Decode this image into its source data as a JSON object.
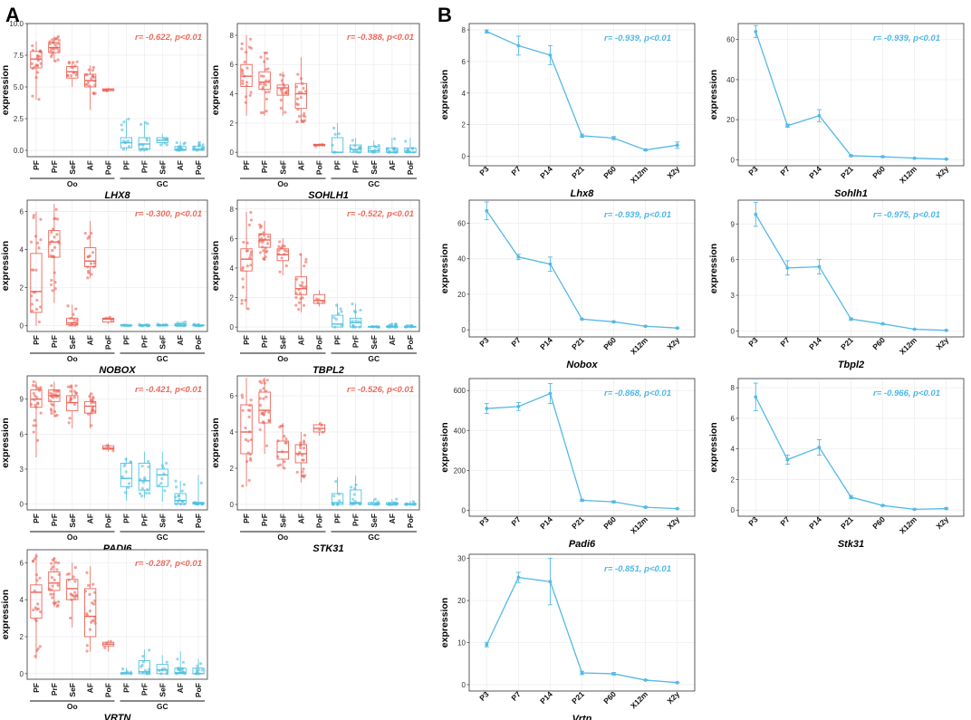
{
  "panels": {
    "a_label": "A",
    "b_label": "B"
  },
  "colors": {
    "oocyte": "#ed6459",
    "granulosa": "#4fc1e0",
    "line": "#55b9e6",
    "grid": "#ececec",
    "frame": "#333333",
    "corr_a": "#ef6a5c",
    "corr_b": "#4eb7e5"
  },
  "common": {
    "ylabel": "expression",
    "box_categories": [
      "PF",
      "PrF",
      "SeF",
      "AF",
      "PoF",
      "PF",
      "PrF",
      "SeF",
      "AF",
      "PoF"
    ],
    "group_oo": "Oo",
    "group_gc": "GC",
    "time_categories": [
      "P3",
      "P7",
      "P14",
      "P21",
      "P60",
      "X12m",
      "X2y"
    ]
  },
  "chart_data": [
    {
      "type": "box",
      "panel": "A",
      "title": "LHX8",
      "correlation": "r= -0.622, p<0.01",
      "ylim": [
        -0.5,
        10
      ],
      "yticks": [
        "0.0",
        "2.5",
        "5.0",
        "7.5",
        "10.0"
      ],
      "ytick_values": [
        0,
        2.5,
        5,
        7.5,
        10
      ],
      "groups": [
        {
          "q1": 6.5,
          "med": 7.2,
          "q3": 7.8,
          "wlo": 4.0,
          "whi": 8.6,
          "n": 22
        },
        {
          "q1": 7.7,
          "med": 8.1,
          "q3": 8.5,
          "wlo": 7.0,
          "whi": 9.0,
          "n": 24
        },
        {
          "q1": 5.7,
          "med": 6.2,
          "q3": 6.6,
          "wlo": 5.0,
          "whi": 7.0,
          "n": 14
        },
        {
          "q1": 5.0,
          "med": 5.5,
          "q3": 6.0,
          "wlo": 3.2,
          "whi": 6.7,
          "n": 18
        },
        {
          "q1": 4.7,
          "med": 4.8,
          "q3": 4.85,
          "wlo": 4.65,
          "whi": 4.95,
          "n": 3
        },
        {
          "q1": 0.2,
          "med": 0.6,
          "q3": 1.0,
          "wlo": 0,
          "whi": 2.5,
          "n": 10
        },
        {
          "q1": 0.1,
          "med": 0.5,
          "q3": 1.0,
          "wlo": 0,
          "whi": 2.2,
          "n": 14
        },
        {
          "q1": 0.6,
          "med": 0.8,
          "q3": 1.0,
          "wlo": 0.4,
          "whi": 1.3,
          "n": 6
        },
        {
          "q1": 0,
          "med": 0.05,
          "q3": 0.3,
          "wlo": 0,
          "whi": 0.7,
          "n": 14
        },
        {
          "q1": 0,
          "med": 0.1,
          "q3": 0.3,
          "wlo": 0,
          "whi": 0.7,
          "n": 10
        }
      ]
    },
    {
      "type": "box",
      "panel": "A",
      "title": "SOHLH1",
      "correlation": "r= -0.388, p<0.01",
      "ylim": [
        -0.3,
        8.8
      ],
      "yticks": [
        "0",
        "2",
        "4",
        "6",
        "8"
      ],
      "ytick_values": [
        0,
        2,
        4,
        6,
        8
      ],
      "groups": [
        {
          "q1": 4.5,
          "med": 5.2,
          "q3": 6.0,
          "wlo": 2.5,
          "whi": 8.0,
          "n": 20
        },
        {
          "q1": 4.3,
          "med": 4.8,
          "q3": 5.5,
          "wlo": 2.5,
          "whi": 6.8,
          "n": 22
        },
        {
          "q1": 3.9,
          "med": 4.4,
          "q3": 4.6,
          "wlo": 2.5,
          "whi": 5.5,
          "n": 16
        },
        {
          "q1": 3.0,
          "med": 4.0,
          "q3": 4.7,
          "wlo": 2.0,
          "whi": 6.5,
          "n": 22
        },
        {
          "q1": 0.45,
          "med": 0.5,
          "q3": 0.55,
          "wlo": 0.4,
          "whi": 0.6,
          "n": 3
        },
        {
          "q1": 0,
          "med": 0,
          "q3": 1.0,
          "wlo": 0,
          "whi": 2.0,
          "n": 6
        },
        {
          "q1": 0,
          "med": 0.2,
          "q3": 0.5,
          "wlo": 0,
          "whi": 1.0,
          "n": 10
        },
        {
          "q1": 0,
          "med": 0.1,
          "q3": 0.4,
          "wlo": 0,
          "whi": 0.8,
          "n": 8
        },
        {
          "q1": 0,
          "med": 0,
          "q3": 0.3,
          "wlo": 0,
          "whi": 1.0,
          "n": 14
        },
        {
          "q1": 0,
          "med": 0,
          "q3": 0.3,
          "wlo": 0,
          "whi": 1.0,
          "n": 10
        }
      ]
    },
    {
      "type": "box",
      "panel": "A",
      "title": "NOBOX",
      "correlation": "r= -0.300, p<0.01",
      "ylim": [
        -0.3,
        6.6
      ],
      "yticks": [
        "0",
        "2",
        "4",
        "6"
      ],
      "ytick_values": [
        0,
        2,
        4,
        6
      ],
      "groups": [
        {
          "q1": 0.7,
          "med": 1.8,
          "q3": 3.8,
          "wlo": 0,
          "whi": 6.0,
          "n": 20
        },
        {
          "q1": 3.6,
          "med": 4.4,
          "q3": 5.0,
          "wlo": 1.2,
          "whi": 6.4,
          "n": 24
        },
        {
          "q1": 0.05,
          "med": 0.15,
          "q3": 0.4,
          "wlo": 0,
          "whi": 1.1,
          "n": 12
        },
        {
          "q1": 3.1,
          "med": 3.4,
          "q3": 4.1,
          "wlo": 2.5,
          "whi": 5.5,
          "n": 16
        },
        {
          "q1": 0.2,
          "med": 0.35,
          "q3": 0.4,
          "wlo": 0.1,
          "whi": 0.45,
          "n": 3
        },
        {
          "q1": 0,
          "med": 0,
          "q3": 0.05,
          "wlo": 0,
          "whi": 0.1,
          "n": 6
        },
        {
          "q1": 0,
          "med": 0,
          "q3": 0.05,
          "wlo": 0,
          "whi": 0.1,
          "n": 10
        },
        {
          "q1": 0,
          "med": 0,
          "q3": 0.05,
          "wlo": 0,
          "whi": 0.1,
          "n": 8
        },
        {
          "q1": 0,
          "med": 0,
          "q3": 0.1,
          "wlo": 0,
          "whi": 0.2,
          "n": 14
        },
        {
          "q1": 0,
          "med": 0,
          "q3": 0.05,
          "wlo": 0,
          "whi": 0.1,
          "n": 10
        }
      ]
    },
    {
      "type": "box",
      "panel": "A",
      "title": "TBPL2",
      "correlation": "r= -0.522, p<0.01",
      "ylim": [
        -0.3,
        8.6
      ],
      "yticks": [
        "0",
        "2",
        "4",
        "6",
        "8"
      ],
      "ytick_values": [
        0,
        2,
        4,
        6,
        8
      ],
      "groups": [
        {
          "q1": 3.8,
          "med": 4.6,
          "q3": 5.3,
          "wlo": 1.2,
          "whi": 7.8,
          "n": 20
        },
        {
          "q1": 5.4,
          "med": 5.9,
          "q3": 6.3,
          "wlo": 4.5,
          "whi": 7.2,
          "n": 24
        },
        {
          "q1": 4.5,
          "med": 4.9,
          "q3": 5.3,
          "wlo": 3.5,
          "whi": 6.0,
          "n": 14
        },
        {
          "q1": 2.2,
          "med": 2.6,
          "q3": 3.4,
          "wlo": 1.0,
          "whi": 5.0,
          "n": 20
        },
        {
          "q1": 1.6,
          "med": 1.8,
          "q3": 2.2,
          "wlo": 1.4,
          "whi": 2.5,
          "n": 4
        },
        {
          "q1": 0,
          "med": 0.2,
          "q3": 0.8,
          "wlo": 0,
          "whi": 1.6,
          "n": 8
        },
        {
          "q1": 0,
          "med": 0.3,
          "q3": 0.6,
          "wlo": 0,
          "whi": 1.6,
          "n": 12
        },
        {
          "q1": 0,
          "med": 0,
          "q3": 0.05,
          "wlo": 0,
          "whi": 0.1,
          "n": 8
        },
        {
          "q1": 0,
          "med": 0,
          "q3": 0.05,
          "wlo": 0,
          "whi": 0.2,
          "n": 14
        },
        {
          "q1": 0,
          "med": 0,
          "q3": 0.05,
          "wlo": 0,
          "whi": 0.1,
          "n": 10
        }
      ]
    },
    {
      "type": "box",
      "panel": "A",
      "title": "PADI6",
      "correlation": "r= -0.421, p<0.01",
      "ylim": [
        -0.5,
        11
      ],
      "yticks": [
        "0",
        "3",
        "6",
        "9"
      ],
      "ytick_values": [
        0,
        3,
        6,
        9
      ],
      "groups": [
        {
          "q1": 8.3,
          "med": 9.0,
          "q3": 9.8,
          "wlo": 4.0,
          "whi": 10.5,
          "n": 22
        },
        {
          "q1": 8.8,
          "med": 9.3,
          "q3": 9.8,
          "wlo": 7.5,
          "whi": 10.5,
          "n": 24
        },
        {
          "q1": 8.0,
          "med": 8.7,
          "q3": 9.3,
          "wlo": 6.5,
          "whi": 10.2,
          "n": 16
        },
        {
          "q1": 7.8,
          "med": 8.4,
          "q3": 8.8,
          "wlo": 6.5,
          "whi": 9.5,
          "n": 18
        },
        {
          "q1": 4.7,
          "med": 4.8,
          "q3": 5.0,
          "wlo": 4.5,
          "whi": 5.2,
          "n": 3
        },
        {
          "q1": 1.5,
          "med": 2.2,
          "q3": 3.5,
          "wlo": 0.3,
          "whi": 4.0,
          "n": 10
        },
        {
          "q1": 1.2,
          "med": 2.0,
          "q3": 3.5,
          "wlo": 0.5,
          "whi": 4.5,
          "n": 14
        },
        {
          "q1": 1.5,
          "med": 2.5,
          "q3": 3.0,
          "wlo": 0.2,
          "whi": 4.5,
          "n": 8
        },
        {
          "q1": 0,
          "med": 0.3,
          "q3": 0.9,
          "wlo": 0,
          "whi": 2.0,
          "n": 14
        },
        {
          "q1": 0,
          "med": 0.05,
          "q3": 0.15,
          "wlo": 0,
          "whi": 2.5,
          "n": 10
        }
      ]
    },
    {
      "type": "box",
      "panel": "A",
      "title": "STK31",
      "correlation": "r= -0.526, p<0.01",
      "ylim": [
        -0.3,
        7.1
      ],
      "yticks": [
        "0",
        "2",
        "4",
        "6"
      ],
      "ytick_values": [
        0,
        2,
        4,
        6
      ],
      "groups": [
        {
          "q1": 2.8,
          "med": 4.0,
          "q3": 5.5,
          "wlo": 1.0,
          "whi": 7.0,
          "n": 20
        },
        {
          "q1": 4.5,
          "med": 5.2,
          "q3": 6.2,
          "wlo": 2.8,
          "whi": 7.0,
          "n": 24
        },
        {
          "q1": 2.5,
          "med": 2.9,
          "q3": 3.5,
          "wlo": 2.0,
          "whi": 4.5,
          "n": 14
        },
        {
          "q1": 2.3,
          "med": 2.8,
          "q3": 3.3,
          "wlo": 1.2,
          "whi": 4.0,
          "n": 20
        },
        {
          "q1": 4.0,
          "med": 4.2,
          "q3": 4.4,
          "wlo": 3.8,
          "whi": 4.5,
          "n": 4
        },
        {
          "q1": 0,
          "med": 0.1,
          "q3": 0.6,
          "wlo": 0,
          "whi": 1.5,
          "n": 8
        },
        {
          "q1": 0.05,
          "med": 0.1,
          "q3": 0.8,
          "wlo": 0,
          "whi": 1.6,
          "n": 12
        },
        {
          "q1": 0,
          "med": 0,
          "q3": 0.1,
          "wlo": 0,
          "whi": 0.3,
          "n": 8
        },
        {
          "q1": 0,
          "med": 0,
          "q3": 0.1,
          "wlo": 0,
          "whi": 0.3,
          "n": 14
        },
        {
          "q1": 0,
          "med": 0,
          "q3": 0.05,
          "wlo": 0,
          "whi": 0.2,
          "n": 10
        }
      ]
    },
    {
      "type": "box",
      "panel": "A",
      "title": "VRTN",
      "correlation": "r= -0.287, p<0.01",
      "ylim": [
        -0.3,
        6.7
      ],
      "yticks": [
        "0",
        "2",
        "4",
        "6"
      ],
      "ytick_values": [
        0,
        2,
        4,
        6
      ],
      "groups": [
        {
          "q1": 3.0,
          "med": 4.4,
          "q3": 4.8,
          "wlo": 0.8,
          "whi": 6.5,
          "n": 20
        },
        {
          "q1": 4.5,
          "med": 4.9,
          "q3": 5.5,
          "wlo": 3.6,
          "whi": 6.3,
          "n": 24
        },
        {
          "q1": 4.0,
          "med": 4.6,
          "q3": 5.1,
          "wlo": 2.5,
          "whi": 6.0,
          "n": 16
        },
        {
          "q1": 2.0,
          "med": 3.1,
          "q3": 4.6,
          "wlo": 1.2,
          "whi": 5.8,
          "n": 20
        },
        {
          "q1": 1.5,
          "med": 1.6,
          "q3": 1.7,
          "wlo": 1.2,
          "whi": 1.8,
          "n": 3
        },
        {
          "q1": 0,
          "med": 0,
          "q3": 0.05,
          "wlo": 0,
          "whi": 0.3,
          "n": 8
        },
        {
          "q1": 0,
          "med": 0.1,
          "q3": 0.7,
          "wlo": 0,
          "whi": 1.3,
          "n": 12
        },
        {
          "q1": 0,
          "med": 0.2,
          "q3": 0.5,
          "wlo": 0,
          "whi": 1.0,
          "n": 8
        },
        {
          "q1": 0,
          "med": 0.05,
          "q3": 0.3,
          "wlo": 0,
          "whi": 1.2,
          "n": 14
        },
        {
          "q1": 0,
          "med": 0,
          "q3": 0.3,
          "wlo": 0,
          "whi": 0.8,
          "n": 10
        }
      ]
    },
    {
      "type": "line",
      "panel": "B",
      "title": "Lhx8",
      "correlation": "r= -0.939, p<0.01",
      "ylim": [
        -0.6,
        8.4
      ],
      "yticks": [
        "0",
        "2",
        "4",
        "6",
        "8"
      ],
      "ytick_values": [
        0,
        2,
        4,
        6,
        8
      ],
      "values": [
        7.9,
        7.0,
        6.4,
        1.3,
        1.15,
        0.4,
        0.7
      ],
      "errors": [
        0.1,
        0.6,
        0.6,
        0.1,
        0.1,
        0.05,
        0.2
      ]
    },
    {
      "type": "line",
      "panel": "B",
      "title": "Sohlh1",
      "correlation": "r= -0.939, p<0.01",
      "ylim": [
        -3,
        68
      ],
      "yticks": [
        "0",
        "20",
        "40",
        "60"
      ],
      "ytick_values": [
        0,
        20,
        40,
        60
      ],
      "values": [
        64,
        17,
        22,
        2,
        1.5,
        0.8,
        0.3
      ],
      "errors": [
        3,
        0.8,
        3,
        0.3,
        0.3,
        0.1,
        0.1
      ]
    },
    {
      "type": "line",
      "panel": "B",
      "title": "Nobox",
      "correlation": "r= -0.939, p<0.01",
      "ylim": [
        -4,
        73
      ],
      "yticks": [
        "0",
        "20",
        "40",
        "60"
      ],
      "ytick_values": [
        0,
        20,
        40,
        60
      ],
      "values": [
        67,
        41,
        37,
        6,
        4.5,
        2,
        1
      ],
      "errors": [
        5,
        1.5,
        4,
        0.3,
        0.3,
        0.2,
        0.2
      ]
    },
    {
      "type": "line",
      "panel": "B",
      "title": "Tbpl2",
      "correlation": "r= -0.975, p<0.01",
      "ylim": [
        -0.5,
        11
      ],
      "yticks": [
        "0",
        "3",
        "6",
        "9"
      ],
      "ytick_values": [
        0,
        3,
        6,
        9
      ],
      "values": [
        9.8,
        5.3,
        5.4,
        1.0,
        0.6,
        0.15,
        0.05
      ],
      "errors": [
        1.0,
        0.6,
        0.6,
        0.1,
        0.05,
        0.02,
        0.02
      ]
    },
    {
      "type": "line",
      "panel": "B",
      "title": "Padi6",
      "correlation": "r= -0.868, p<0.01",
      "ylim": [
        -30,
        660
      ],
      "yticks": [
        "0",
        "200",
        "400",
        "600"
      ],
      "ytick_values": [
        0,
        200,
        400,
        600
      ],
      "values": [
        510,
        520,
        585,
        50,
        42,
        15,
        8
      ],
      "errors": [
        25,
        20,
        50,
        5,
        5,
        3,
        2
      ]
    },
    {
      "type": "line",
      "panel": "B",
      "title": "Stk31",
      "correlation": "r= -0.966, p<0.01",
      "ylim": [
        -0.4,
        8.6
      ],
      "yticks": [
        "0",
        "2",
        "4",
        "6",
        "8"
      ],
      "ytick_values": [
        0,
        2,
        4,
        6,
        8
      ],
      "values": [
        7.4,
        3.3,
        4.1,
        0.85,
        0.3,
        0.05,
        0.1
      ],
      "errors": [
        0.9,
        0.3,
        0.5,
        0.1,
        0.05,
        0.02,
        0.05
      ]
    },
    {
      "type": "line",
      "panel": "B",
      "title": "Vrtn",
      "correlation": "r= -0.851, p<0.01",
      "ylim": [
        -1.5,
        31
      ],
      "yticks": [
        "0",
        "10",
        "20",
        "30"
      ],
      "ytick_values": [
        0,
        10,
        20,
        30
      ],
      "values": [
        9.5,
        25.5,
        24.5,
        2.8,
        2.6,
        1.1,
        0.5
      ],
      "errors": [
        0.5,
        1.2,
        5.5,
        0.4,
        0.3,
        0.1,
        0.1
      ]
    }
  ]
}
